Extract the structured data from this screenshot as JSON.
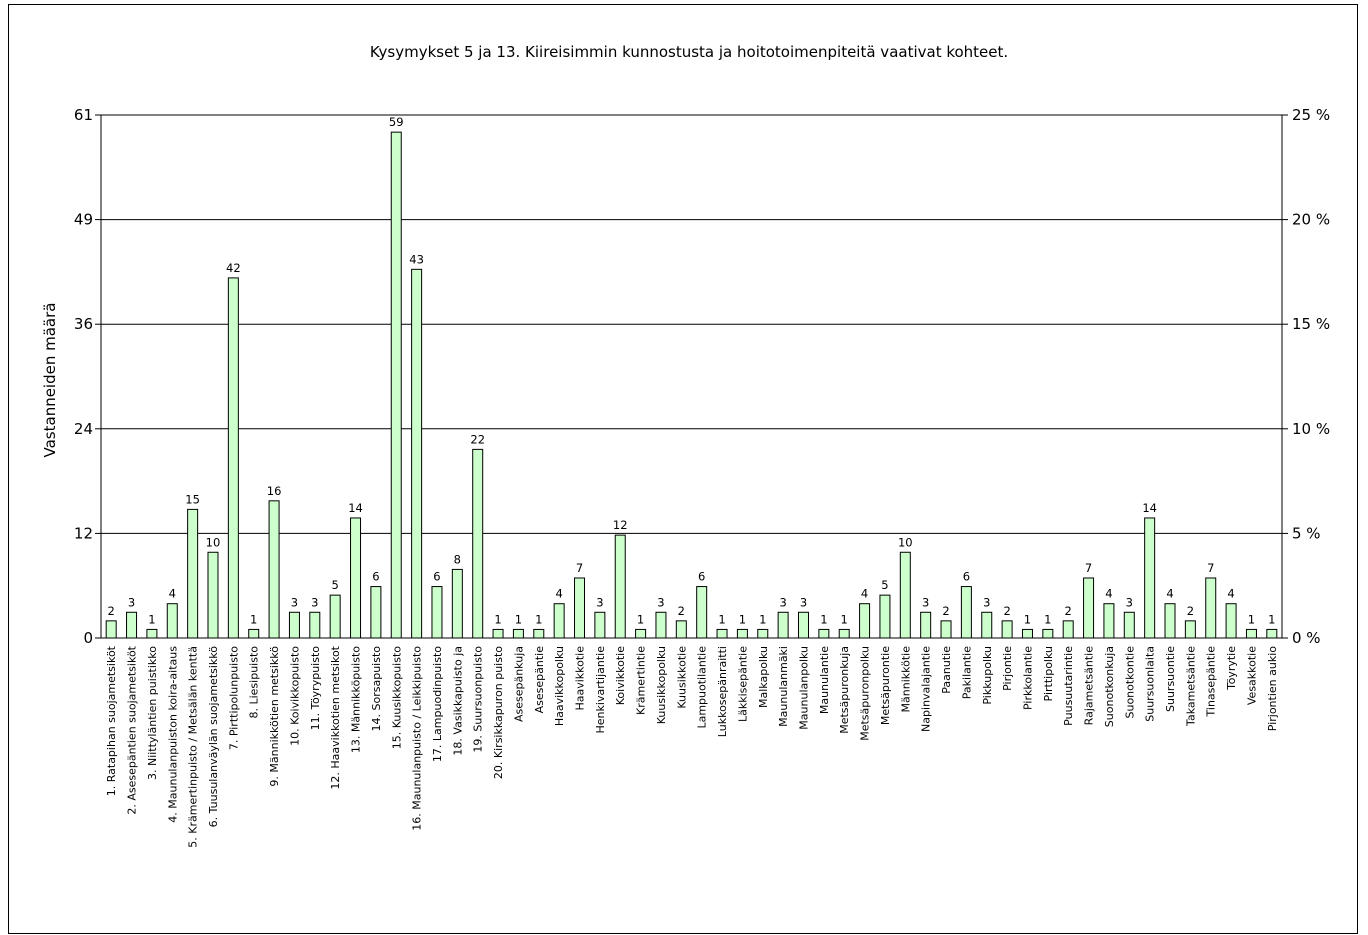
{
  "chart_data": {
    "type": "bar",
    "title": "Kysymykset 5 ja 13. Kiireisimmin kunnostusta ja hoitotoimenpiteitä vaativat kohteet.",
    "ylabel": "Vastanneiden määrä",
    "ylim": [
      0,
      61
    ],
    "y_ticks": [
      "0",
      "12",
      "24",
      "36",
      "49",
      "61"
    ],
    "y2lim": [
      0,
      25
    ],
    "y2_ticks": [
      "0 %",
      "5 %",
      "10 %",
      "15 %",
      "20 %",
      "25 %"
    ],
    "grid": true,
    "legend": "none",
    "bar_color": "#ccffcc",
    "categories": [
      "1. Ratapihan suojametsiköt",
      "2. Asesepäntien suojametsiköt",
      "3. Niittyläntien puistikko",
      "4. Maunulanpuiston koira-aitaus",
      "5. Krämertinpuisto / Metsälän kenttä",
      "6. Tuusulanväylän suojametsikkö",
      "7. Pirttipolunpuisto",
      "8. Liesipuisto",
      "9. Männikkötien metsikkö",
      "10. Koivikkopuisto",
      "11. Töyrypuisto",
      "12. Haavikkotien metsikot",
      "13. Männikköpuisto",
      "14. Sorsapuisto",
      "15. Kuusikkopuisto",
      "16. Maunulanpuisto / Leikkipuisto",
      "17. Lampuodinpuisto",
      "18. Vasikkapuisto ja",
      "19. Suursuonpuisto",
      "20. Kirsikkapuron puisto",
      "Asesepänkuja",
      "Asesepäntie",
      "Haavikkopolku",
      "Haavikkotie",
      "Henkivartijantie",
      "Koivikkotie",
      "Krämertintie",
      "Kuusikkopolku",
      "Kuusikkotie",
      "Lampuotilantie",
      "Lukkosepänraitti",
      "Läkkisepäntie",
      "Malkapolku",
      "Maunulanmäki",
      "Maunulanpolku",
      "Maunulantie",
      "Metsäpuronkuja",
      "Metsäpuronpolku",
      "Metsäpurontie",
      "Männikkötie",
      "Napinvalajantie",
      "Paanutie",
      "Pakilantie",
      "Pikkupolku",
      "Pirjontie",
      "Pirkkolantie",
      "Pirttipolku",
      "Puusuutarintie",
      "Rajametsäntie",
      "Suonotkonkuja",
      "Suonotkontie",
      "Suursuonlaita",
      "Suursuontie",
      "Takametsäntie",
      "Tinasepäntie",
      "Töyrytie",
      "Vesakkotie",
      "Pirjontien aukio"
    ],
    "values": [
      2,
      3,
      1,
      4,
      15,
      10,
      42,
      1,
      16,
      3,
      3,
      5,
      14,
      6,
      59,
      43,
      6,
      8,
      22,
      1,
      1,
      1,
      4,
      7,
      3,
      12,
      1,
      3,
      2,
      6,
      1,
      1,
      1,
      3,
      3,
      1,
      1,
      4,
      5,
      10,
      3,
      2,
      6,
      3,
      2,
      1,
      1,
      2,
      7,
      4,
      3,
      14,
      4,
      2,
      7,
      4,
      1,
      1
    ]
  }
}
